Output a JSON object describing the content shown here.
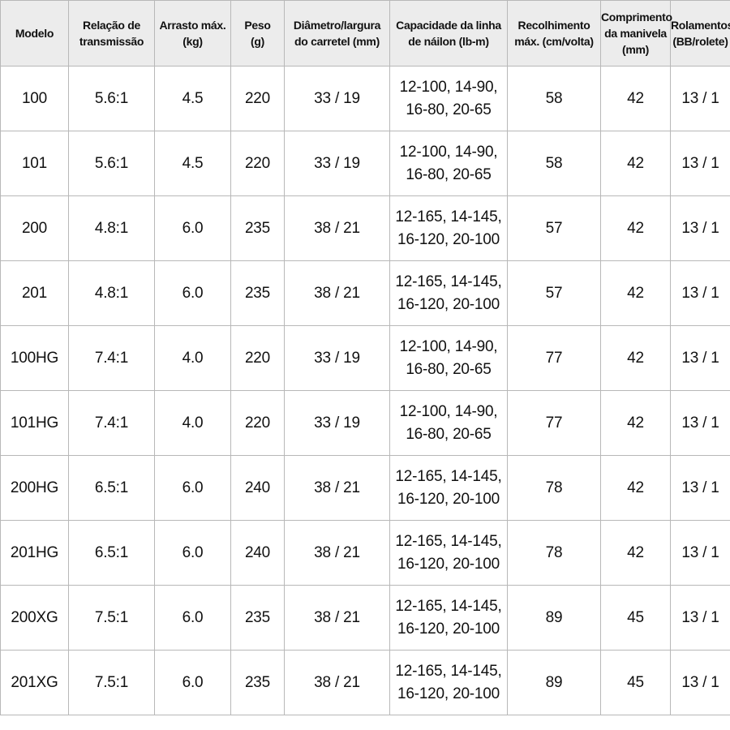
{
  "table": {
    "header": [
      [
        "Modelo"
      ],
      [
        "Relação de",
        "transmissão"
      ],
      [
        "Arrasto máx.",
        "(kg)"
      ],
      [
        "Peso",
        "(g)"
      ],
      [
        "Diâmetro/largura",
        "do carretel (mm)"
      ],
      [
        "Capacidade da linha",
        "de náilon (lb-m)"
      ],
      [
        "Recolhimento",
        "máx. (cm/volta)"
      ],
      [
        "Comprimento",
        "da manivela",
        "(mm)"
      ],
      [
        "Rolamentos",
        "(BB/rolete)"
      ]
    ],
    "rows": [
      [
        [
          "100"
        ],
        [
          "5.6:1"
        ],
        [
          "4.5"
        ],
        [
          "220"
        ],
        [
          "33 / 19"
        ],
        [
          "12-100, 14-90,",
          "16-80, 20-65"
        ],
        [
          "58"
        ],
        [
          "42"
        ],
        [
          "13 / 1"
        ]
      ],
      [
        [
          "101"
        ],
        [
          "5.6:1"
        ],
        [
          "4.5"
        ],
        [
          "220"
        ],
        [
          "33 / 19"
        ],
        [
          "12-100, 14-90,",
          "16-80, 20-65"
        ],
        [
          "58"
        ],
        [
          "42"
        ],
        [
          "13 / 1"
        ]
      ],
      [
        [
          "200"
        ],
        [
          "4.8:1"
        ],
        [
          "6.0"
        ],
        [
          "235"
        ],
        [
          "38 / 21"
        ],
        [
          "12-165, 14-145,",
          "16-120, 20-100"
        ],
        [
          "57"
        ],
        [
          "42"
        ],
        [
          "13 / 1"
        ]
      ],
      [
        [
          "201"
        ],
        [
          "4.8:1"
        ],
        [
          "6.0"
        ],
        [
          "235"
        ],
        [
          "38 / 21"
        ],
        [
          "12-165, 14-145,",
          "16-120, 20-100"
        ],
        [
          "57"
        ],
        [
          "42"
        ],
        [
          "13 / 1"
        ]
      ],
      [
        [
          "100HG"
        ],
        [
          "7.4:1"
        ],
        [
          "4.0"
        ],
        [
          "220"
        ],
        [
          "33 / 19"
        ],
        [
          "12-100, 14-90,",
          "16-80, 20-65"
        ],
        [
          "77"
        ],
        [
          "42"
        ],
        [
          "13 / 1"
        ]
      ],
      [
        [
          "101HG"
        ],
        [
          "7.4:1"
        ],
        [
          "4.0"
        ],
        [
          "220"
        ],
        [
          "33 / 19"
        ],
        [
          "12-100, 14-90,",
          "16-80, 20-65"
        ],
        [
          "77"
        ],
        [
          "42"
        ],
        [
          "13 / 1"
        ]
      ],
      [
        [
          "200HG"
        ],
        [
          "6.5:1"
        ],
        [
          "6.0"
        ],
        [
          "240"
        ],
        [
          "38 / 21"
        ],
        [
          "12-165, 14-145,",
          "16-120, 20-100"
        ],
        [
          "78"
        ],
        [
          "42"
        ],
        [
          "13 / 1"
        ]
      ],
      [
        [
          "201HG"
        ],
        [
          "6.5:1"
        ],
        [
          "6.0"
        ],
        [
          "240"
        ],
        [
          "38 / 21"
        ],
        [
          "12-165, 14-145,",
          "16-120, 20-100"
        ],
        [
          "78"
        ],
        [
          "42"
        ],
        [
          "13 / 1"
        ]
      ],
      [
        [
          "200XG"
        ],
        [
          "7.5:1"
        ],
        [
          "6.0"
        ],
        [
          "235"
        ],
        [
          "38 / 21"
        ],
        [
          "12-165, 14-145,",
          "16-120, 20-100"
        ],
        [
          "89"
        ],
        [
          "45"
        ],
        [
          "13 / 1"
        ]
      ],
      [
        [
          "201XG"
        ],
        [
          "7.5:1"
        ],
        [
          "6.0"
        ],
        [
          "235"
        ],
        [
          "38 / 21"
        ],
        [
          "12-165, 14-145,",
          "16-120, 20-100"
        ],
        [
          "89"
        ],
        [
          "45"
        ],
        [
          "13 / 1"
        ]
      ]
    ]
  }
}
